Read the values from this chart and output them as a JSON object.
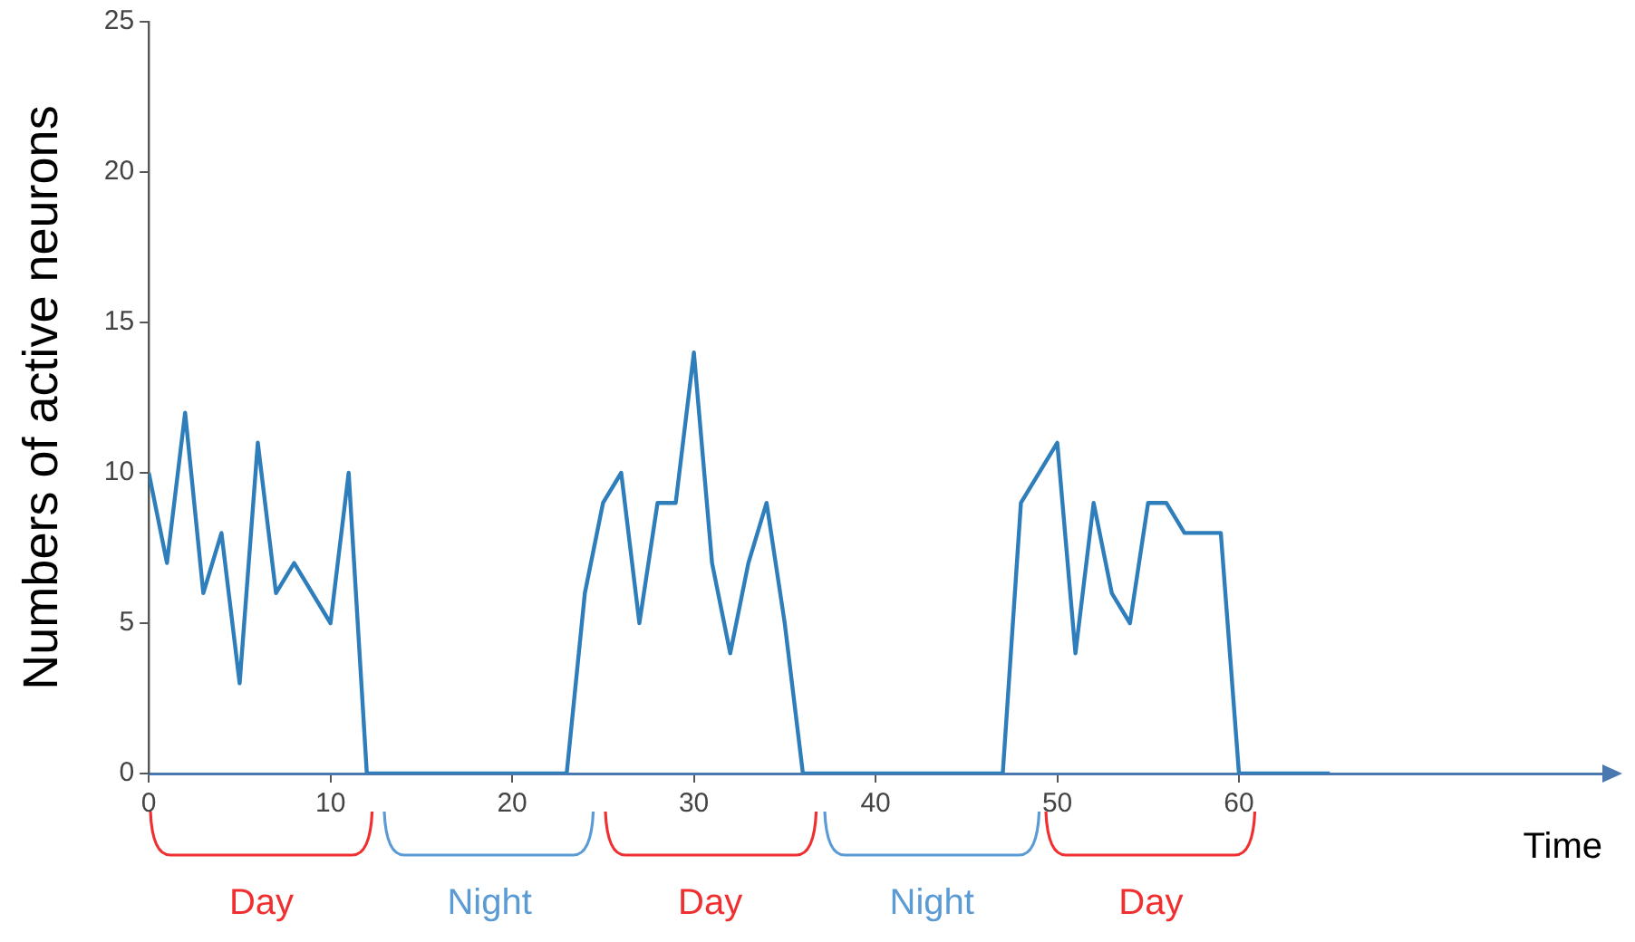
{
  "chart_data": {
    "type": "line",
    "xlabel": "Time",
    "ylabel": "Numbers of active neurons",
    "x": [
      0,
      1,
      2,
      3,
      4,
      5,
      6,
      7,
      8,
      10,
      11,
      12,
      23,
      24,
      25,
      26,
      27,
      28,
      29,
      30,
      31,
      32,
      33,
      34,
      35,
      36,
      47,
      48,
      50,
      51,
      52,
      53,
      54,
      55,
      56,
      57,
      59,
      60,
      65
    ],
    "series": [
      {
        "color": "#2f7ebc",
        "values": [
          10,
          7,
          12,
          6,
          8,
          3,
          11,
          6,
          7,
          5,
          10,
          0,
          0,
          6,
          9,
          10,
          5,
          9,
          9,
          14,
          7,
          4,
          7,
          9,
          5,
          0,
          0,
          9,
          11,
          4,
          9,
          6,
          5,
          9,
          9,
          8,
          8,
          0,
          0
        ]
      }
    ],
    "xlim": [
      0,
      80
    ],
    "xticks": [
      0,
      10,
      20,
      30,
      40,
      50,
      60
    ],
    "ylim": [
      0,
      25
    ],
    "yticks": [
      0,
      5,
      10,
      15,
      20,
      25
    ],
    "grid": false,
    "legend": false,
    "annotations": [
      "Day",
      "Night",
      "Day",
      "Night",
      "Day"
    ]
  }
}
